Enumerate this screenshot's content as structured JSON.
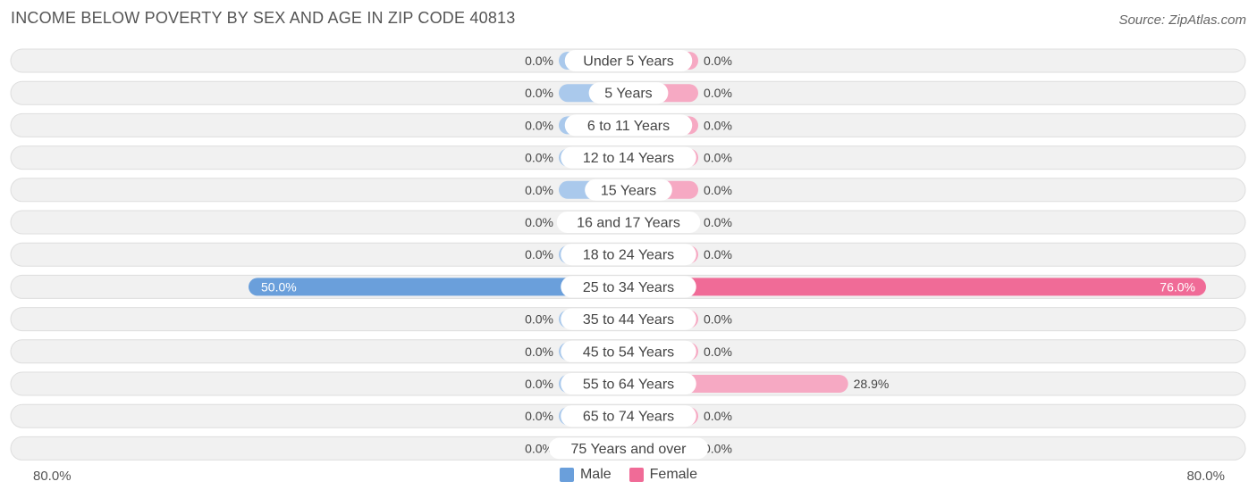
{
  "title": "INCOME BELOW POVERTY BY SEX AND AGE IN ZIP CODE 40813",
  "source": "Source: ZipAtlas.com",
  "colors": {
    "male_light": "#aac9ec",
    "male_strong": "#6a9fdb",
    "female_light": "#f6a9c3",
    "female_strong": "#f06b97",
    "row_bg": "#f1f1f1",
    "row_border": "#dedede"
  },
  "chart_data": {
    "type": "bar",
    "orientation": "horizontal-diverging",
    "categories": [
      "Under 5 Years",
      "5 Years",
      "6 to 11 Years",
      "12 to 14 Years",
      "15 Years",
      "16 and 17 Years",
      "18 to 24 Years",
      "25 to 34 Years",
      "35 to 44 Years",
      "45 to 54 Years",
      "55 to 64 Years",
      "65 to 74 Years",
      "75 Years and over"
    ],
    "series": [
      {
        "name": "Male",
        "values": [
          0.0,
          0.0,
          0.0,
          0.0,
          0.0,
          0.0,
          0.0,
          50.0,
          0.0,
          0.0,
          0.0,
          0.0,
          0.0
        ],
        "labels": [
          "0.0%",
          "0.0%",
          "0.0%",
          "0.0%",
          "0.0%",
          "0.0%",
          "0.0%",
          "50.0%",
          "0.0%",
          "0.0%",
          "0.0%",
          "0.0%",
          "0.0%"
        ]
      },
      {
        "name": "Female",
        "values": [
          0.0,
          0.0,
          0.0,
          0.0,
          0.0,
          0.0,
          0.0,
          76.0,
          0.0,
          0.0,
          28.9,
          0.0,
          0.0
        ],
        "labels": [
          "0.0%",
          "0.0%",
          "0.0%",
          "0.0%",
          "0.0%",
          "0.0%",
          "0.0%",
          "76.0%",
          "0.0%",
          "0.0%",
          "28.9%",
          "0.0%",
          "0.0%"
        ]
      }
    ],
    "xlim": [
      -80,
      80
    ],
    "axis_labels": {
      "left": "80.0%",
      "right": "80.0%"
    },
    "legend": {
      "position": "bottom-center",
      "items": [
        "Male",
        "Female"
      ]
    },
    "grid": false
  }
}
